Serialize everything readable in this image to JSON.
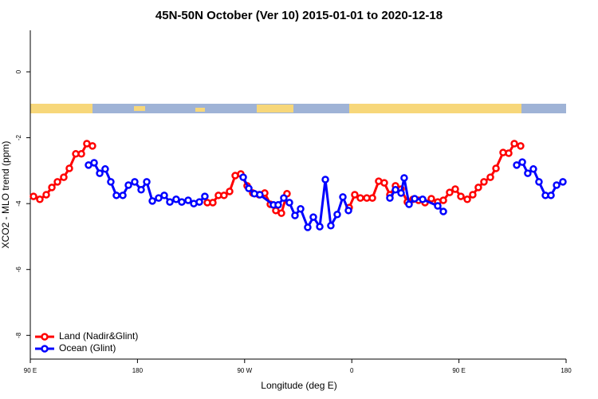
{
  "chart_data": {
    "type": "line",
    "title": "45N-50N October (Ver 10)   2015-01-01 to 2020-12-18",
    "x_label": "Longitude (deg E)",
    "y_label": "XCO2 - MLO trend (ppm)",
    "xlim": [
      90,
      540
    ],
    "xticks": [
      {
        "value": 90,
        "label": "90 E"
      },
      180,
      {
        "value": 270,
        "label": "90 W"
      },
      {
        "value": 360,
        "label": "0"
      },
      {
        "value": 450,
        "label": "90 E"
      },
      {
        "value": 540,
        "label": "180"
      }
    ],
    "ylim": [
      -8.72,
      1.26
    ],
    "yticks": [
      0,
      -2,
      -4,
      -6,
      -8
    ],
    "legend": "bottom-left",
    "series": [
      {
        "name": "Land (Nadir&Glint)",
        "color": "#ff0000",
        "x": [
          92.7,
          98.0,
          103.4,
          108.1,
          112.8,
          118.1,
          122.8,
          128.2,
          132.9,
          137.5,
          142.2,
          190,
          238.7,
          243.3,
          248.0,
          252.7,
          257.4,
          262.1,
          266.8,
          272.1,
          276.8,
          282.2,
          286.9,
          291.6,
          296.2,
          300.9,
          305.6,
          330,
          357.8,
          362.5,
          367.2,
          372.6,
          377.3,
          382.6,
          387.3,
          392.0,
          396.7,
          401.4,
          406.7,
          411.4,
          416.1,
          421.5,
          426.8,
          432.2,
          436.9,
          442.2,
          446.9,
          451.6,
          457.0,
          461.6,
          466.3,
          471.0,
          476.4,
          481.1,
          487.1,
          491.8,
          496.5,
          501.8
        ],
        "values": [
          -3.78,
          -3.87,
          -3.73,
          -3.51,
          -3.34,
          -3.2,
          -2.93,
          -2.49,
          -2.49,
          -2.18,
          -2.25,
          null,
          -3.97,
          -3.97,
          -3.75,
          -3.75,
          -3.63,
          -3.15,
          -3.1,
          -3.46,
          -3.68,
          -3.73,
          -3.68,
          -4.02,
          -4.21,
          -4.29,
          -3.7,
          null,
          -4.12,
          -3.73,
          -3.83,
          -3.83,
          -3.83,
          -3.32,
          -3.37,
          -3.73,
          -3.46,
          -3.56,
          -3.95,
          -3.87,
          -3.9,
          -3.97,
          -3.85,
          -3.95,
          -3.9,
          -3.66,
          -3.56,
          -3.78,
          -3.87,
          -3.73,
          -3.51,
          -3.34,
          -3.2,
          -2.93,
          -2.45,
          -2.47,
          -2.18,
          -2.25
        ]
      },
      {
        "name": "Ocean (Glint)",
        "color": "#0000ff",
        "x": [
          138.9,
          143.6,
          148.3,
          152.9,
          157.6,
          162.3,
          167.7,
          172.4,
          177.7,
          183.1,
          187.8,
          192.5,
          197.8,
          202.5,
          207.2,
          212.5,
          217.2,
          222.6,
          227.3,
          232.0,
          236.6,
          250,
          268.8,
          273.5,
          278.2,
          282.8,
          294.2,
          298.2,
          302.9,
          307.6,
          312.3,
          317.0,
          323.0,
          327.7,
          333.1,
          337.8,
          342.4,
          347.8,
          352.5,
          357.2,
          375,
          392.0,
          396.7,
          401.4,
          404.0,
          408.1,
          412.8,
          419.5,
          432.2,
          436.9,
          470,
          498.5,
          503.2,
          507.8,
          512.5,
          517.2,
          522.6,
          527.3,
          532.0,
          537.3
        ],
        "values": [
          -2.83,
          -2.76,
          -3.08,
          -2.95,
          -3.34,
          -3.75,
          -3.75,
          -3.44,
          -3.34,
          -3.58,
          -3.34,
          -3.92,
          -3.83,
          -3.75,
          -3.95,
          -3.87,
          -3.95,
          -3.9,
          -4.0,
          -3.95,
          -3.78,
          null,
          -3.2,
          -3.54,
          -3.7,
          -3.73,
          -4.04,
          -4.04,
          -3.83,
          -3.97,
          -4.36,
          -4.16,
          -4.72,
          -4.41,
          -4.7,
          -3.27,
          -4.67,
          -4.33,
          -3.8,
          -4.21,
          null,
          -3.83,
          -3.58,
          -3.68,
          -3.22,
          -4.02,
          -3.85,
          -3.87,
          -4.07,
          -4.24,
          null,
          -2.83,
          -2.74,
          -3.08,
          -2.95,
          -3.34,
          -3.75,
          -3.75,
          -3.44,
          -3.34
        ]
      }
    ]
  }
}
